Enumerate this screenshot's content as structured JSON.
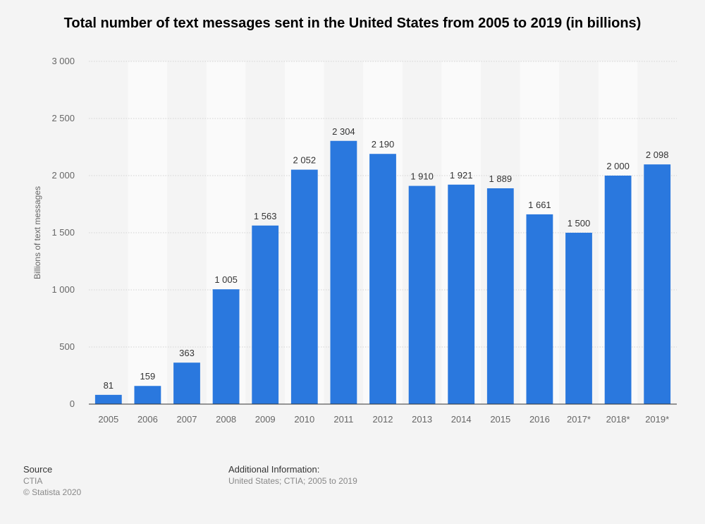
{
  "chart_data": {
    "type": "bar",
    "title": "Total number of text messages sent in the United States from 2005 to 2019 (in billions)",
    "xlabel": "",
    "ylabel": "Billions of text messages",
    "categories": [
      "2005",
      "2006",
      "2007",
      "2008",
      "2009",
      "2010",
      "2011",
      "2012",
      "2013",
      "2014",
      "2015",
      "2016",
      "2017*",
      "2018*",
      "2019*"
    ],
    "values": [
      81,
      159,
      363,
      1005,
      1563,
      2052,
      2304,
      2190,
      1910,
      1921,
      1889,
      1661,
      1500,
      2000,
      2098
    ],
    "value_labels": [
      "81",
      "159",
      "363",
      "1 005",
      "1 563",
      "2 052",
      "2 304",
      "2 190",
      "1 910",
      "1 921",
      "1 889",
      "1 661",
      "1 500",
      "2 000",
      "2 098"
    ],
    "ylim": [
      0,
      3000
    ],
    "yticks": [
      0,
      500,
      1000,
      1500,
      2000,
      2500,
      3000
    ],
    "ytick_labels": [
      "0",
      "500",
      "1 000",
      "1 500",
      "2 000",
      "2 500",
      "3 000"
    ],
    "grid": true,
    "colors": {
      "bar": "#2a78de",
      "band": "#fafafa",
      "grid": "#d3d3d3",
      "axis": "#333333"
    }
  },
  "footer": {
    "source_heading": "Source",
    "source_name": "CTIA",
    "copyright": "© Statista 2020",
    "info_heading": "Additional Information:",
    "info_text": "United States; CTIA; 2005 to 2019"
  }
}
